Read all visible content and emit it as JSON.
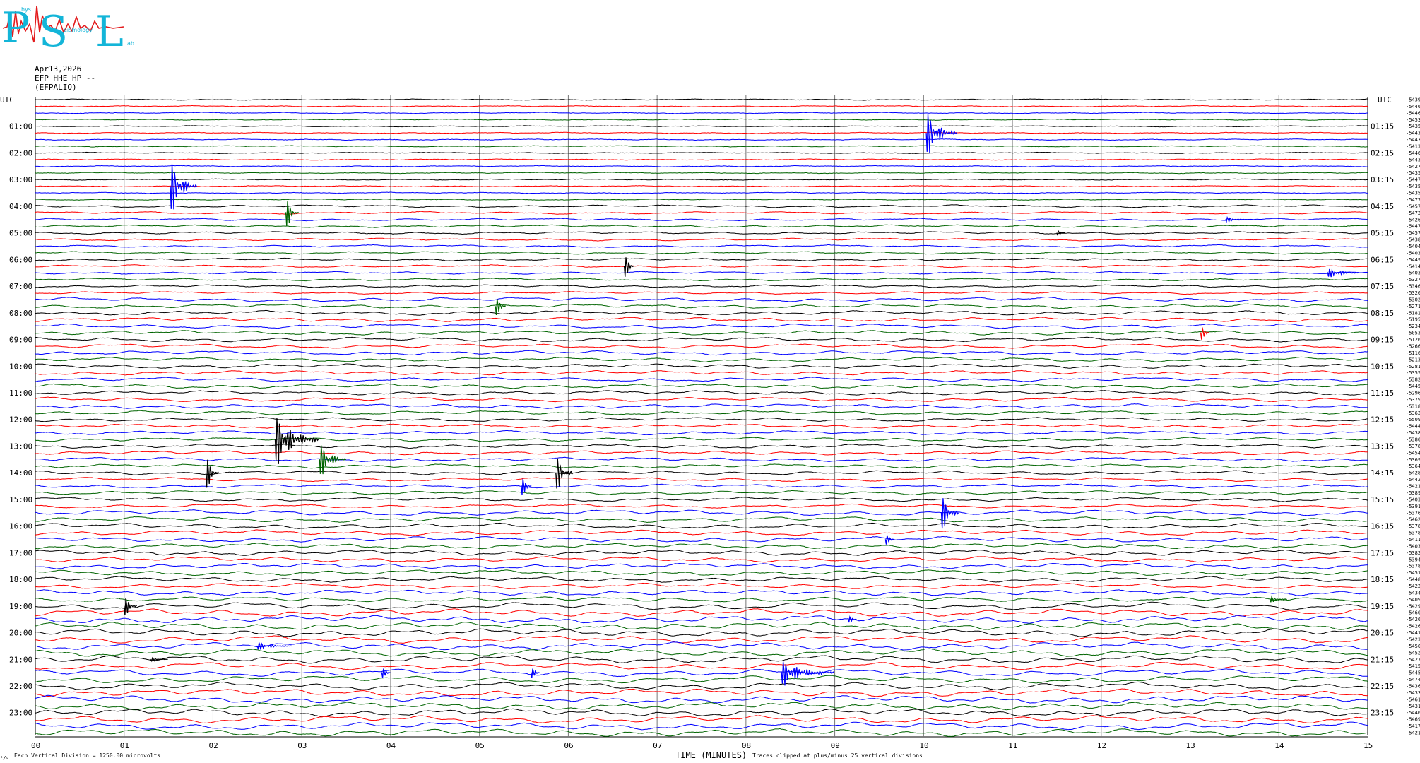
{
  "header": {
    "date": "Apr13,2026",
    "channel": "EFP HHE HP --",
    "station": "(EFPALIO)"
  },
  "logo": {
    "text": "PSL",
    "small_top": "hys",
    "small_mid": "eismology",
    "small_right": "ab"
  },
  "utc_label": "UTC",
  "chart_data": {
    "type": "line",
    "title": "",
    "xlabel": "TIME (MINUTES)",
    "x_ticks": [
      "00",
      "01",
      "02",
      "03",
      "04",
      "05",
      "06",
      "07",
      "08",
      "09",
      "10",
      "11",
      "12",
      "13",
      "14",
      "15"
    ],
    "xlim": [
      0,
      15
    ],
    "rows": 96,
    "row_minutes": 15,
    "trace_colors": [
      "#000000",
      "#ff0000",
      "#0000ff",
      "#006400"
    ],
    "left_hour_labels": [
      "01:00",
      "02:00",
      "03:00",
      "04:00",
      "05:00",
      "06:00",
      "07:00",
      "08:00",
      "09:00",
      "10:00",
      "11:00",
      "12:00",
      "13:00",
      "14:00",
      "15:00",
      "16:00",
      "17:00",
      "18:00",
      "19:00",
      "20:00",
      "21:00",
      "22:00",
      "23:00"
    ],
    "right_hour_labels": [
      "01:15",
      "02:15",
      "03:15",
      "04:15",
      "05:15",
      "06:15",
      "07:15",
      "08:15",
      "09:15",
      "10:15",
      "11:15",
      "12:15",
      "13:15",
      "14:15",
      "15:15",
      "16:15",
      "17:15",
      "18:15",
      "19:15",
      "20:15",
      "21:15",
      "22:15",
      "23:15"
    ],
    "row_offsets": [
      "-5439",
      "-5446",
      "-5446",
      "-5453",
      "-5435",
      "-5443",
      "-5443",
      "-5413",
      "-5446",
      "-5443",
      "-5427",
      "-5435",
      "-5447",
      "-5435",
      "-5435",
      "-5477",
      "-5457",
      "-5472",
      "-5426",
      "-5447",
      "-5457",
      "-5438",
      "-5404",
      "-5403",
      "-5449",
      "-5414",
      "-5403",
      "-5327",
      "-5346",
      "-5320",
      "-5302",
      "-5271",
      "-5182",
      "-5195",
      "-5234",
      "-5053",
      "-5126",
      "-5266",
      "-5116",
      "-5213",
      "-5281",
      "-5355",
      "-5382",
      "-5445",
      "-5296",
      "-5379",
      "-5318",
      "-5362",
      "-5509",
      "-5444",
      "-5438",
      "-5380",
      "-5378",
      "-5454",
      "-5369",
      "-5364",
      "-5428",
      "-5442",
      "-5421",
      "-5389",
      "-5403",
      "-5391",
      "-5376",
      "-5462",
      "-5378",
      "-5378",
      "-5411",
      "-5403",
      "-5382",
      "-5394",
      "-5378",
      "-5451",
      "-5448",
      "-5422",
      "-5434",
      "-5409",
      "-5429",
      "-5460",
      "-5426",
      "-5426",
      "-5441",
      "-5423",
      "-5450",
      "-5452",
      "-5427",
      "-5415",
      "-5445",
      "-5474",
      "-5436",
      "-5433",
      "-5461",
      "-5431",
      "-5446",
      "-5469",
      "-5417",
      "-5421"
    ],
    "events": [
      {
        "row": 5,
        "minute": 10.03,
        "amp": 4.5,
        "len": 0.35,
        "color": "#0000ff"
      },
      {
        "row": 13,
        "minute": 1.52,
        "amp": 5.5,
        "len": 0.3,
        "color": "#0000ff"
      },
      {
        "row": 17,
        "minute": 2.82,
        "amp": 3.5,
        "len": 0.15,
        "color": "#006400"
      },
      {
        "row": 20,
        "minute": 11.5,
        "amp": 0.6,
        "len": 0.1,
        "color": "#000000"
      },
      {
        "row": 18,
        "minute": 13.4,
        "amp": 0.5,
        "len": 0.3,
        "color": "#0000ff"
      },
      {
        "row": 25,
        "minute": 6.63,
        "amp": 3.0,
        "len": 0.12,
        "color": "#000000"
      },
      {
        "row": 26,
        "minute": 14.55,
        "amp": 0.9,
        "len": 0.4,
        "color": "#0000ff"
      },
      {
        "row": 31,
        "minute": 5.18,
        "amp": 2.5,
        "len": 0.12,
        "color": "#006400"
      },
      {
        "row": 35,
        "minute": 13.12,
        "amp": 2.0,
        "len": 0.1,
        "color": "#ff0000"
      },
      {
        "row": 51,
        "minute": 2.7,
        "amp": 5.0,
        "len": 0.5,
        "color": "#000000"
      },
      {
        "row": 54,
        "minute": 3.2,
        "amp": 3.5,
        "len": 0.3,
        "color": "#006400"
      },
      {
        "row": 56,
        "minute": 1.92,
        "amp": 4.0,
        "len": 0.15,
        "color": "#000000"
      },
      {
        "row": 56,
        "minute": 5.86,
        "amp": 4.0,
        "len": 0.2,
        "color": "#000000"
      },
      {
        "row": 58,
        "minute": 5.47,
        "amp": 2.5,
        "len": 0.12,
        "color": "#0000ff"
      },
      {
        "row": 62,
        "minute": 10.2,
        "amp": 4.0,
        "len": 0.2,
        "color": "#0000ff"
      },
      {
        "row": 66,
        "minute": 9.57,
        "amp": 1.5,
        "len": 0.1,
        "color": "#0000ff"
      },
      {
        "row": 76,
        "minute": 1.0,
        "amp": 2.5,
        "len": 0.15,
        "color": "#000000"
      },
      {
        "row": 75,
        "minute": 13.9,
        "amp": 0.7,
        "len": 0.2,
        "color": "#006400"
      },
      {
        "row": 78,
        "minute": 9.15,
        "amp": 0.9,
        "len": 0.1,
        "color": "#0000ff"
      },
      {
        "row": 82,
        "minute": 2.5,
        "amp": 0.8,
        "len": 0.4,
        "color": "#0000ff"
      },
      {
        "row": 84,
        "minute": 1.3,
        "amp": 0.4,
        "len": 0.2,
        "color": "#000000"
      },
      {
        "row": 86,
        "minute": 3.9,
        "amp": 1.5,
        "len": 0.1,
        "color": "#0000ff"
      },
      {
        "row": 86,
        "minute": 5.58,
        "amp": 1.5,
        "len": 0.1,
        "color": "#0000ff"
      },
      {
        "row": 86,
        "minute": 8.4,
        "amp": 2.5,
        "len": 0.6,
        "color": "#0000ff"
      }
    ],
    "noise_profile": [
      {
        "from": 0,
        "to": 15,
        "amp": 0.15
      },
      {
        "from": 16,
        "to": 29,
        "amp": 0.35
      },
      {
        "from": 30,
        "to": 47,
        "amp": 0.6
      },
      {
        "from": 48,
        "to": 61,
        "amp": 0.55
      },
      {
        "from": 62,
        "to": 75,
        "amp": 0.75
      },
      {
        "from": 76,
        "to": 95,
        "amp": 1.0
      }
    ]
  },
  "footer": {
    "vertical_division": "Each Vertical Division = 1250.00 microvolts",
    "clipped": "Traces clipped at plus/minus 25 vertical divisions",
    "corner_mark": "¹/₈"
  }
}
